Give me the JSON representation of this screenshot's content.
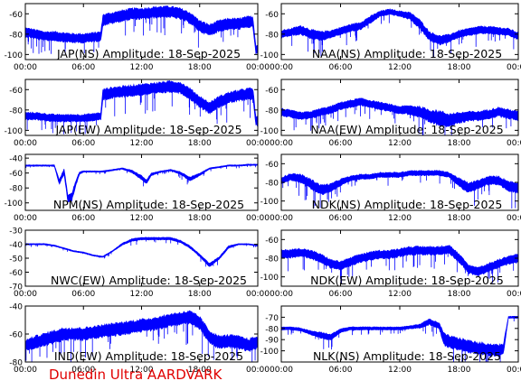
{
  "footer": "Dunedin Ultra AARDVARK",
  "colors": {
    "trace": "#0000ff",
    "axis": "#000000",
    "footer": "#e00000",
    "background": "#ffffff"
  },
  "chart_data": [
    {
      "type": "line",
      "title": "JAP(NS) Amplitude: 18-Sep-2025",
      "xlabel": "",
      "ylabel": "",
      "xticks": [
        "00:00",
        "06:00",
        "12:00",
        "18:00",
        "00:00"
      ],
      "xlim": [
        0,
        24
      ],
      "ylim": [
        -105,
        -50
      ],
      "yticks": [
        -60,
        -80,
        -100
      ],
      "grid": false,
      "series": [
        {
          "x": [
            0,
            1,
            2,
            3,
            4,
            5,
            6,
            7,
            7.8,
            8,
            9,
            10,
            11,
            12,
            13,
            14,
            15,
            16,
            17,
            18,
            19,
            20,
            21,
            22,
            23,
            23.5,
            23.8,
            24
          ],
          "y": [
            -78,
            -80,
            -82,
            -82,
            -83,
            -84,
            -84,
            -83,
            -82,
            -66,
            -64,
            -62,
            -60,
            -60,
            -59,
            -58,
            -58,
            -60,
            -64,
            -72,
            -76,
            -72,
            -70,
            -70,
            -68,
            -68,
            -95,
            -95
          ],
          "spread": [
            5,
            5,
            5,
            5,
            5,
            5,
            5,
            5,
            5,
            6,
            6,
            6,
            6,
            6,
            6,
            6,
            6,
            6,
            6,
            6,
            6,
            6,
            6,
            6,
            6,
            6,
            5,
            5
          ]
        }
      ]
    },
    {
      "type": "line",
      "title": "NAA(NS) Amplitude: 18-Sep-2025",
      "xlabel": "",
      "ylabel": "",
      "xticks": [
        "00:00",
        "06:00",
        "12:00",
        "18:00",
        "00:00"
      ],
      "xlim": [
        0,
        24
      ],
      "ylim": [
        -105,
        -50
      ],
      "yticks": [
        -60,
        -80,
        -100
      ],
      "grid": false,
      "series": [
        {
          "x": [
            0,
            1,
            2,
            3,
            4,
            5,
            6,
            7,
            8,
            9,
            10,
            11,
            12,
            13,
            14,
            15,
            16,
            17,
            18,
            19,
            20,
            21,
            22,
            23,
            24
          ],
          "y": [
            -80,
            -78,
            -76,
            -80,
            -82,
            -80,
            -77,
            -74,
            -72,
            -66,
            -60,
            -58,
            -60,
            -62,
            -70,
            -82,
            -86,
            -84,
            -80,
            -78,
            -76,
            -76,
            -77,
            -78,
            -82
          ],
          "spread": [
            4,
            4,
            5,
            5,
            5,
            4,
            4,
            4,
            4,
            4,
            3,
            3,
            3,
            4,
            5,
            5,
            5,
            4,
            4,
            4,
            4,
            4,
            4,
            4,
            4
          ]
        }
      ]
    },
    {
      "type": "line",
      "title": "JAP(EW) Amplitude: 18-Sep-2025",
      "xlabel": "",
      "ylabel": "",
      "xticks": [
        "00:00",
        "06:00",
        "12:00",
        "18:00",
        "00:00"
      ],
      "xlim": [
        0,
        24
      ],
      "ylim": [
        -105,
        -50
      ],
      "yticks": [
        -60,
        -80,
        -100
      ],
      "grid": false,
      "series": [
        {
          "x": [
            0,
            1,
            2,
            3,
            4,
            5,
            6,
            7,
            7.8,
            8,
            9,
            10,
            11,
            12,
            13,
            14,
            15,
            16,
            17,
            18,
            19,
            20,
            21,
            22,
            23,
            23.5,
            23.8,
            24
          ],
          "y": [
            -86,
            -86,
            -87,
            -88,
            -88,
            -88,
            -88,
            -87,
            -86,
            -65,
            -63,
            -62,
            -61,
            -60,
            -59,
            -58,
            -57,
            -58,
            -64,
            -72,
            -78,
            -72,
            -68,
            -66,
            -64,
            -64,
            -90,
            -92
          ],
          "spread": [
            4,
            4,
            4,
            4,
            4,
            4,
            4,
            4,
            4,
            6,
            6,
            6,
            6,
            6,
            6,
            6,
            6,
            6,
            6,
            6,
            6,
            6,
            6,
            6,
            6,
            6,
            5,
            5
          ]
        }
      ]
    },
    {
      "type": "line",
      "title": "NAA(EW) Amplitude: 18-Sep-2025",
      "xlabel": "",
      "ylabel": "",
      "xticks": [
        "00:00",
        "06:00",
        "12:00",
        "18:00",
        "00:00"
      ],
      "xlim": [
        0,
        24
      ],
      "ylim": [
        -105,
        -50
      ],
      "yticks": [
        -60,
        -80,
        -100
      ],
      "grid": false,
      "series": [
        {
          "x": [
            0,
            1,
            2,
            3,
            4,
            5,
            6,
            7,
            8,
            9,
            10,
            11,
            12,
            13,
            14,
            15,
            16,
            17,
            18,
            19,
            20,
            21,
            22,
            23,
            24
          ],
          "y": [
            -82,
            -84,
            -86,
            -85,
            -82,
            -80,
            -76,
            -74,
            -72,
            -74,
            -76,
            -78,
            -80,
            -80,
            -82,
            -86,
            -88,
            -90,
            -88,
            -86,
            -86,
            -84,
            -82,
            -84,
            -86
          ],
          "spread": [
            4,
            4,
            4,
            4,
            4,
            4,
            4,
            4,
            4,
            4,
            4,
            4,
            4,
            5,
            6,
            7,
            8,
            7,
            6,
            5,
            5,
            5,
            5,
            5,
            5
          ]
        }
      ]
    },
    {
      "type": "line",
      "title": "NPM(NS) Amplitude: 18-Sep-2025",
      "xlabel": "",
      "ylabel": "",
      "xticks": [
        "00:00",
        "06:00",
        "12:00",
        "18:00",
        "00:00"
      ],
      "xlim": [
        0,
        24
      ],
      "ylim": [
        -110,
        -35
      ],
      "yticks": [
        -40,
        -60,
        -80,
        -100
      ],
      "grid": false,
      "series": [
        {
          "x": [
            0,
            1,
            2,
            3,
            3.5,
            4,
            4.4,
            4.8,
            5.2,
            5.6,
            6,
            7,
            8,
            9,
            10,
            11,
            12,
            12.5,
            13,
            14,
            15,
            16,
            17,
            18,
            19,
            20,
            21,
            22,
            23,
            24
          ],
          "y": [
            -50,
            -50,
            -50,
            -50,
            -72,
            -58,
            -95,
            -92,
            -74,
            -60,
            -58,
            -58,
            -58,
            -56,
            -54,
            -58,
            -66,
            -72,
            -62,
            -58,
            -56,
            -60,
            -68,
            -62,
            -54,
            -52,
            -50,
            -50,
            -49,
            -49
          ],
          "spread": [
            1,
            1,
            1,
            1,
            4,
            4,
            6,
            6,
            4,
            2,
            1,
            1,
            1,
            1,
            1,
            2,
            3,
            3,
            2,
            1,
            1,
            2,
            3,
            2,
            1,
            1,
            1,
            1,
            1,
            1
          ]
        }
      ]
    },
    {
      "type": "line",
      "title": "NDK(NS) Amplitude: 18-Sep-2025",
      "xlabel": "",
      "ylabel": "",
      "xticks": [
        "00:00",
        "06:00",
        "12:00",
        "18:00",
        "00:00"
      ],
      "xlim": [
        0,
        24
      ],
      "ylim": [
        -110,
        -50
      ],
      "yticks": [
        -60,
        -80,
        -100
      ],
      "grid": false,
      "series": [
        {
          "x": [
            0,
            1,
            2,
            3,
            4,
            5,
            6,
            7,
            8,
            9,
            10,
            11,
            12,
            13,
            14,
            15,
            16,
            17,
            18,
            19,
            20,
            21,
            22,
            23,
            24
          ],
          "y": [
            -78,
            -74,
            -76,
            -82,
            -88,
            -86,
            -80,
            -76,
            -74,
            -74,
            -72,
            -72,
            -72,
            -70,
            -70,
            -70,
            -70,
            -72,
            -80,
            -86,
            -82,
            -78,
            -78,
            -84,
            -86
          ],
          "spread": [
            4,
            4,
            5,
            6,
            6,
            5,
            4,
            3,
            3,
            3,
            3,
            3,
            3,
            3,
            3,
            3,
            3,
            3,
            5,
            6,
            5,
            5,
            5,
            6,
            6
          ]
        }
      ]
    },
    {
      "type": "line",
      "title": "NWC(EW) Amplitude: 18-Sep-2025",
      "xlabel": "",
      "ylabel": "",
      "xticks": [
        "00:00",
        "06:00",
        "12:00",
        "18:00",
        "00:00"
      ],
      "xlim": [
        0,
        24
      ],
      "ylim": [
        -70,
        -30
      ],
      "yticks": [
        -30,
        -40,
        -50,
        -60,
        -70
      ],
      "grid": false,
      "series": [
        {
          "x": [
            0,
            1,
            2,
            3,
            4,
            5,
            6,
            7,
            8,
            9,
            10,
            11,
            12,
            13,
            14,
            15,
            16,
            17,
            18,
            19,
            20,
            21,
            22,
            23,
            24
          ],
          "y": [
            -40,
            -40,
            -40,
            -41,
            -43,
            -45,
            -46,
            -48,
            -49,
            -45,
            -40,
            -37,
            -36,
            -36,
            -36,
            -36,
            -38,
            -42,
            -48,
            -55,
            -50,
            -42,
            -40,
            -40,
            -41
          ],
          "spread": [
            0.5,
            0.5,
            0.5,
            0.5,
            0.5,
            0.5,
            0.5,
            0.5,
            0.5,
            0.5,
            0.8,
            1,
            1,
            1,
            1,
            1,
            1,
            1,
            1,
            1.5,
            1,
            1,
            0.5,
            0.5,
            0.5
          ]
        }
      ]
    },
    {
      "type": "line",
      "title": "NDK(EW) Amplitude: 18-Sep-2025",
      "xlabel": "",
      "ylabel": "",
      "xticks": [
        "00:00",
        "06:00",
        "12:00",
        "18:00",
        "00:00"
      ],
      "xlim": [
        0,
        24
      ],
      "ylim": [
        -110,
        -50
      ],
      "yticks": [
        -60,
        -80,
        -100
      ],
      "grid": false,
      "series": [
        {
          "x": [
            0,
            1,
            2,
            3,
            4,
            5,
            6,
            7,
            8,
            9,
            10,
            11,
            12,
            13,
            14,
            15,
            16,
            17,
            18,
            19,
            20,
            21,
            22,
            23,
            24
          ],
          "y": [
            -76,
            -75,
            -74,
            -76,
            -80,
            -86,
            -88,
            -84,
            -80,
            -78,
            -76,
            -76,
            -74,
            -72,
            -72,
            -72,
            -72,
            -70,
            -80,
            -92,
            -94,
            -90,
            -86,
            -82,
            -80
          ],
          "spread": [
            5,
            5,
            5,
            5,
            5,
            5,
            5,
            5,
            5,
            5,
            5,
            5,
            5,
            5,
            5,
            5,
            5,
            5,
            5,
            5,
            5,
            5,
            5,
            5,
            5
          ]
        }
      ]
    },
    {
      "type": "line",
      "title": "IND(EW) Amplitude: 18-Sep-2025",
      "xlabel": "",
      "ylabel": "",
      "xticks": [
        "00:00",
        "06:00",
        "12:00",
        "18:00",
        "00:00"
      ],
      "xlim": [
        0,
        24
      ],
      "ylim": [
        -80,
        -40
      ],
      "yticks": [
        -40,
        -60,
        -80
      ],
      "grid": false,
      "series": [
        {
          "x": [
            0,
            1,
            2,
            3,
            4,
            5,
            6,
            7,
            8,
            9,
            10,
            11,
            12,
            13,
            14,
            15,
            16,
            17,
            18,
            19,
            20,
            21,
            22,
            23,
            24
          ],
          "y": [
            -68,
            -66,
            -64,
            -62,
            -60,
            -60,
            -60,
            -59,
            -58,
            -57,
            -56,
            -55,
            -54,
            -53,
            -52,
            -50,
            -49,
            -48,
            -52,
            -62,
            -66,
            -65,
            -66,
            -68,
            -66
          ],
          "spread": [
            4,
            5,
            5,
            5,
            5,
            5,
            5,
            5,
            5,
            5,
            5,
            5,
            5,
            5,
            5,
            5,
            5,
            5,
            5,
            5,
            5,
            5,
            5,
            5,
            5
          ]
        }
      ]
    },
    {
      "type": "line",
      "title": "NLK(NS) Amplitude: 18-Sep-2025",
      "xlabel": "",
      "ylabel": "",
      "xticks": [
        "00:00",
        "06:00",
        "12:00",
        "18:00",
        "00:00"
      ],
      "xlim": [
        0,
        24
      ],
      "ylim": [
        -110,
        -60
      ],
      "yticks": [
        -70,
        -80,
        -90,
        -100
      ],
      "grid": false,
      "series": [
        {
          "x": [
            0,
            1,
            2,
            3,
            4,
            5,
            6,
            7,
            8,
            9,
            10,
            11,
            12,
            13,
            14,
            15,
            16,
            16.5,
            17,
            18,
            19,
            20,
            21,
            22,
            22.5,
            23,
            23.5,
            24
          ],
          "y": [
            -80,
            -80,
            -81,
            -84,
            -86,
            -88,
            -82,
            -80,
            -80,
            -80,
            -80,
            -80,
            -80,
            -79,
            -78,
            -74,
            -78,
            -90,
            -92,
            -94,
            -96,
            -98,
            -99,
            -100,
            -98,
            -70,
            -70,
            -70
          ],
          "spread": [
            1.5,
            1.5,
            1.5,
            2,
            3,
            3,
            2,
            1.5,
            1.5,
            1.5,
            1.5,
            1.5,
            1.5,
            1.5,
            2,
            3,
            3,
            6,
            6,
            6,
            6,
            6,
            6,
            6,
            5,
            1,
            1,
            1
          ]
        }
      ]
    }
  ]
}
